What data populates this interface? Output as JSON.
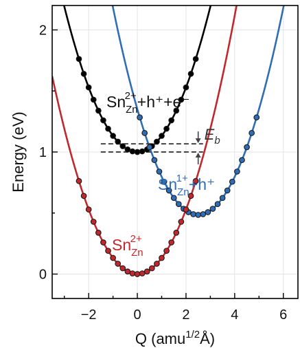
{
  "chart_data": {
    "type": "line",
    "title": "",
    "xlabel": "Q (amu",
    "xlabel_sup": "1/2",
    "xlabel_unit": "Å)",
    "ylabel": "Energy (eV)",
    "xlim": [
      -3.5,
      6.6
    ],
    "ylim": [
      -0.2,
      2.2
    ],
    "xticks": [
      -2,
      0,
      2,
      4,
      6
    ],
    "xtick_labels": [
      "−2",
      "0",
      "2",
      "4",
      "6"
    ],
    "yticks": [
      0,
      1,
      2
    ],
    "ytick_labels": [
      "0",
      "1",
      "2"
    ],
    "grid": true,
    "series": [
      {
        "key": "black",
        "label_base": "Sn",
        "label_sub": "Zn",
        "label_sup": "2+",
        "label_rest": "+h⁺+e⁻",
        "color": "#000000",
        "q0": 0.0,
        "e0": 1.0,
        "curvature": 0.063,
        "points_q": [
          -2.4,
          -2.2,
          -2.0,
          -1.8,
          -1.6,
          -1.4,
          -1.2,
          -1.0,
          -0.8,
          -0.6,
          -0.4,
          -0.2,
          0.0,
          0.2,
          0.4,
          0.6,
          0.8,
          1.0,
          1.2,
          1.4,
          1.6,
          1.8,
          2.0,
          2.2,
          2.4
        ]
      },
      {
        "key": "blue",
        "label_base": "Sn",
        "label_sub": "Zn",
        "label_sup": "1+",
        "label_rest": "+h⁺",
        "color": "#2f6db5",
        "q0": 2.5,
        "e0": 0.485,
        "curvature": 0.066,
        "points_q": [
          0.1,
          0.3,
          0.5,
          0.7,
          0.9,
          1.1,
          1.3,
          1.5,
          1.7,
          1.9,
          2.1,
          2.3,
          2.5,
          2.7,
          2.9,
          3.1,
          3.3,
          3.5,
          3.7,
          3.9,
          4.1,
          4.3,
          4.5,
          4.7,
          4.9
        ]
      },
      {
        "key": "red",
        "label_base": "Sn",
        "label_sub": "Zn",
        "label_sup": "2+",
        "label_rest": "",
        "color": "#c0282d",
        "q0": 0.0,
        "e0": 0.0,
        "curvature": 0.063,
        "points_q": [
          -2.4,
          -2.2,
          -2.0,
          -1.8,
          -1.6,
          -1.4,
          -1.2,
          -1.0,
          -0.8,
          -0.6,
          -0.4,
          -0.2,
          0.0,
          0.2,
          0.4,
          0.6,
          0.8,
          1.0,
          1.2,
          1.4,
          1.6,
          1.8,
          2.0,
          2.2,
          2.4
        ]
      }
    ],
    "eb": {
      "label": "E",
      "label_sub": "b",
      "upper_energy": 1.067,
      "lower_energy": 1.0,
      "q_from": -1.5,
      "q_to": 2.7,
      "arrow_q": 2.5,
      "color": "#444444"
    }
  }
}
